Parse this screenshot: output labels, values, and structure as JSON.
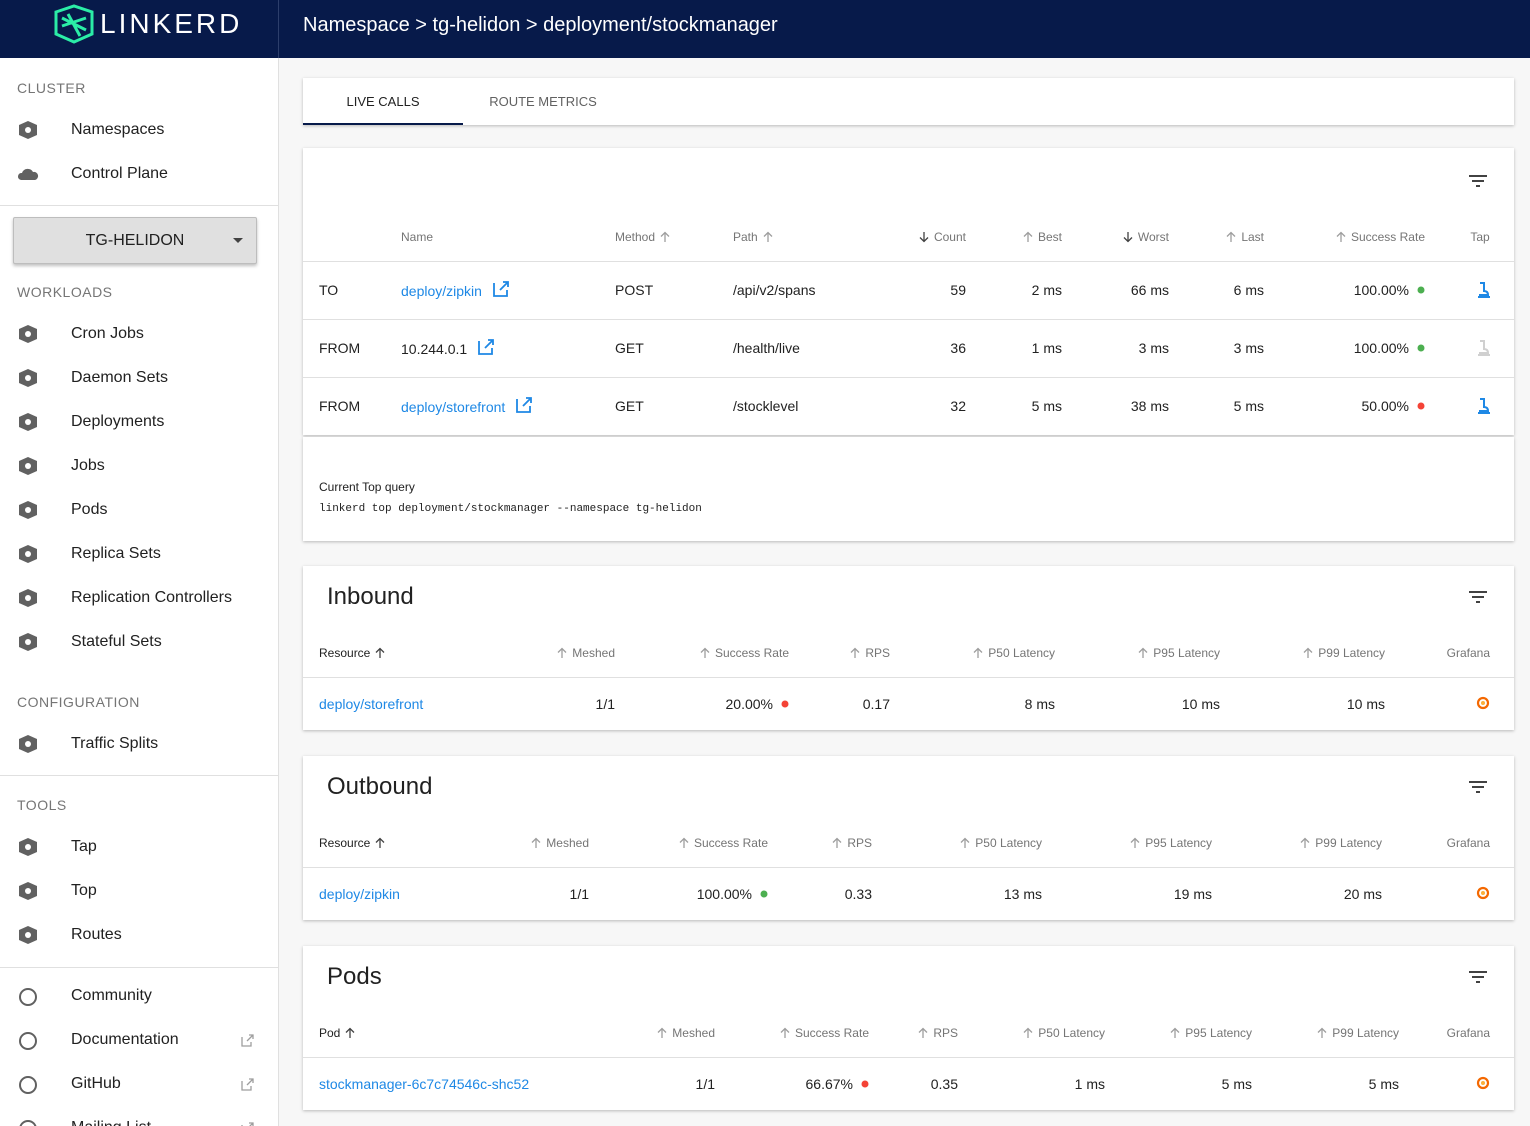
{
  "brand": "LINKERD",
  "breadcrumb": "Namespace > tg-helidon > deployment/stockmanager",
  "sidebar": {
    "sections": [
      {
        "heading": "CLUSTER",
        "items": [
          "Namespaces",
          "Control Plane"
        ]
      },
      {
        "heading": "WORKLOADS",
        "items": [
          "Cron Jobs",
          "Daemon Sets",
          "Deployments",
          "Jobs",
          "Pods",
          "Replica Sets",
          "Replication Controllers",
          "Stateful Sets"
        ]
      },
      {
        "heading": "CONFIGURATION",
        "items": [
          "Traffic Splits"
        ]
      },
      {
        "heading": "TOOLS",
        "items": [
          "Tap",
          "Top",
          "Routes"
        ]
      }
    ],
    "namespace": "TG-HELIDON",
    "links": [
      "Community",
      "Documentation",
      "GitHub",
      "Mailing List"
    ]
  },
  "tabs": [
    "LIVE CALLS",
    "ROUTE METRICS"
  ],
  "live_calls": {
    "headers": [
      "Name",
      "Method",
      "Path",
      "Count",
      "Best",
      "Worst",
      "Last",
      "Success Rate",
      "Tap"
    ],
    "rows": [
      {
        "direction": "TO",
        "cells": [
          "deploy/zipkin",
          "POST",
          "/api/v2/spans",
          "59",
          "2 ms",
          "66 ms",
          "6 ms",
          "100.00%"
        ],
        "status_color": "#4caf50",
        "name_is_link": true,
        "tap_enabled": true
      },
      {
        "direction": "FROM",
        "cells": [
          "10.244.0.1",
          "GET",
          "/health/live",
          "36",
          "1 ms",
          "3 ms",
          "3 ms",
          "100.00%"
        ],
        "status_color": "#4caf50",
        "name_is_link": false,
        "tap_enabled": false
      },
      {
        "direction": "FROM",
        "cells": [
          "deploy/storefront",
          "GET",
          "/stocklevel",
          "32",
          "5 ms",
          "38 ms",
          "5 ms",
          "50.00%"
        ],
        "status_color": "#f44336",
        "name_is_link": true,
        "tap_enabled": true
      }
    ]
  },
  "query": {
    "label": "Current Top query",
    "command": "linkerd top deployment/stockmanager --namespace tg-helidon"
  },
  "tables": [
    {
      "title": "Inbound",
      "headers": [
        "Resource",
        "Meshed",
        "Success Rate",
        "RPS",
        "P50 Latency",
        "P95 Latency",
        "P99 Latency",
        "Grafana"
      ],
      "rows": [
        {
          "cells": [
            "deploy/storefront",
            "1/1",
            "20.00%",
            "0.17",
            "8 ms",
            "10 ms",
            "10 ms"
          ],
          "status_color": "#f44336"
        }
      ]
    },
    {
      "title": "Outbound",
      "headers": [
        "Resource",
        "Meshed",
        "Success Rate",
        "RPS",
        "P50 Latency",
        "P95 Latency",
        "P99 Latency",
        "Grafana"
      ],
      "rows": [
        {
          "cells": [
            "deploy/zipkin",
            "1/1",
            "100.00%",
            "0.33",
            "13 ms",
            "19 ms",
            "20 ms"
          ],
          "status_color": "#4caf50"
        }
      ]
    },
    {
      "title": "Pods",
      "headers": [
        "Pod",
        "Meshed",
        "Success Rate",
        "RPS",
        "P50 Latency",
        "P95 Latency",
        "P99 Latency",
        "Grafana"
      ],
      "rows": [
        {
          "cells": [
            "stockmanager-6c7c74546c-shc52",
            "1/1",
            "66.67%",
            "0.35",
            "1 ms",
            "5 ms",
            "5 ms"
          ],
          "status_color": "#f44336"
        }
      ]
    }
  ]
}
